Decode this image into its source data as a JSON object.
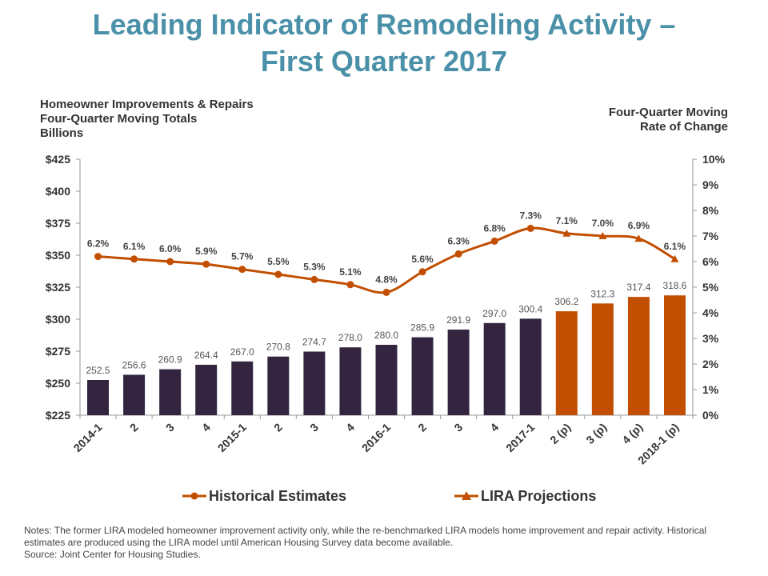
{
  "title": {
    "line1": "Leading Indicator of Remodeling Activity –",
    "line2": "First Quarter 2017"
  },
  "left_axis_label": {
    "line1": "Homeowner Improvements & Repairs",
    "line2": "Four-Quarter Moving Totals",
    "line3": "Billions"
  },
  "right_axis_label": {
    "line1": "Four-Quarter Moving",
    "line2": "Rate of Change"
  },
  "notes": {
    "line1": "Notes: The former LIRA modeled homeowner improvement activity only, while the re-benchmarked LIRA models home improvement and repair activity. Historical estimates are produced using the LIRA model until American Housing Survey data become available.",
    "line2": "Source: Joint Center for Housing Studies."
  },
  "colors": {
    "historical_bar": "#33253f",
    "projection": "#c24e00",
    "title": "#4a90a8",
    "axis": "#999999"
  },
  "chart_data": {
    "type": "bar",
    "categories": [
      "2014-1",
      "2",
      "3",
      "4",
      "2015-1",
      "2",
      "3",
      "4",
      "2016-1",
      "2",
      "3",
      "4",
      "2017-1",
      "2 (p)",
      "3 (p)",
      "4 (p)",
      "2018-1 (p)"
    ],
    "bars": {
      "values": [
        252.5,
        256.6,
        260.9,
        264.4,
        267.0,
        270.8,
        274.7,
        278.0,
        280.0,
        285.9,
        291.9,
        297.0,
        300.4,
        306.2,
        312.3,
        317.4,
        318.6
      ],
      "labels": [
        "252.5",
        "256.6",
        "260.9",
        "264.4",
        "267.0",
        "270.8",
        "274.7",
        "278.0",
        "280.0",
        "285.9",
        "291.9",
        "297.0",
        "300.4",
        "306.2",
        "312.3",
        "317.4",
        "318.6"
      ],
      "projection_start_index": 13
    },
    "line": {
      "values": [
        6.2,
        6.1,
        6.0,
        5.9,
        5.7,
        5.5,
        5.3,
        5.1,
        4.8,
        5.6,
        6.3,
        6.8,
        7.3,
        7.1,
        7.0,
        6.9,
        6.1
      ],
      "labels": [
        "6.2%",
        "6.1%",
        "6.0%",
        "5.9%",
        "5.7%",
        "5.5%",
        "5.3%",
        "5.1%",
        "4.8%",
        "5.6%",
        "6.3%",
        "6.8%",
        "7.3%",
        "7.1%",
        "7.0%",
        "6.9%",
        "6.1%"
      ],
      "projection_start_index": 13
    },
    "series": [
      {
        "name": "Historical Estimates",
        "marker": "circle"
      },
      {
        "name": "LIRA Projections",
        "marker": "triangle"
      }
    ],
    "y_left": {
      "min": 225,
      "max": 425,
      "step": 25,
      "ticks": [
        "$225",
        "$250",
        "$275",
        "$300",
        "$325",
        "$350",
        "$375",
        "$400",
        "$425"
      ]
    },
    "y_right": {
      "min": 0,
      "max": 10,
      "step": 1,
      "ticks": [
        "0%",
        "1%",
        "2%",
        "3%",
        "4%",
        "5%",
        "6%",
        "7%",
        "8%",
        "9%",
        "10%"
      ]
    },
    "legend_position": "bottom"
  }
}
